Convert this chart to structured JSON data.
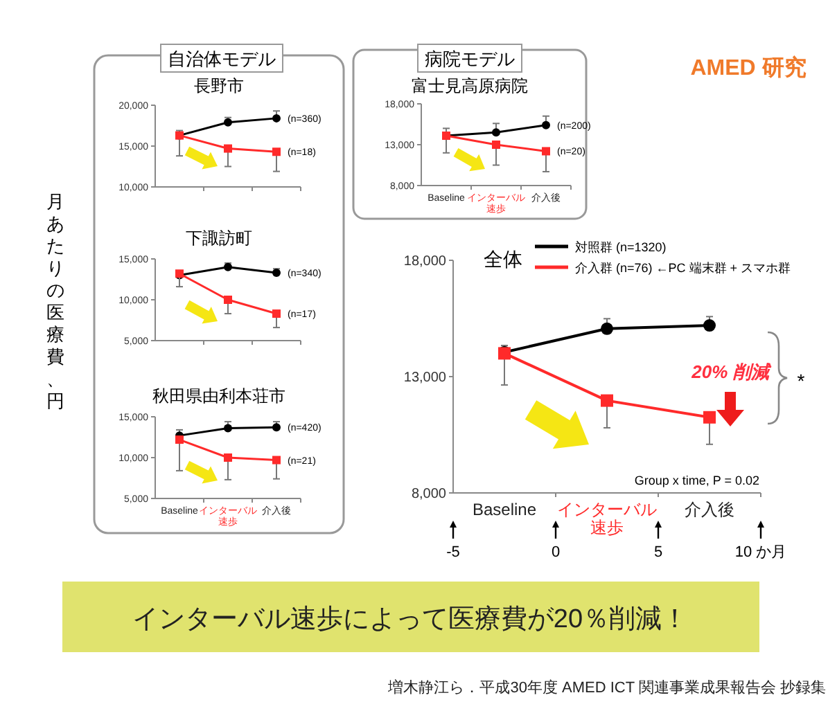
{
  "chart_data": [
    {
      "type": "line",
      "title": "長野市",
      "ylabel": "月あたりの医療費、円",
      "annotations": [
        "自治体モデル"
      ],
      "categories": [
        null,
        null,
        null
      ],
      "ylim": [
        10000,
        20000
      ],
      "yticks": [
        {
          "value": 10000,
          "label": "10,000"
        },
        {
          "value": 15000,
          "label": "15,000"
        },
        {
          "value": 20000,
          "label": "20,000"
        }
      ],
      "series": [
        {
          "name": "(n=360)",
          "color": "#000000",
          "marker": "circle",
          "values": [
            16300,
            17900,
            18400
          ],
          "errors": [
            [
              16300,
              16900
            ],
            [
              17900,
              18500
            ],
            [
              18400,
              19300
            ]
          ]
        },
        {
          "name": "(n=18)",
          "color": "#ff2a2a",
          "marker": "square",
          "values": [
            16300,
            14700,
            14300
          ],
          "errors": [
            [
              13800,
              16300
            ],
            [
              12500,
              14700
            ],
            [
              11900,
              14300
            ]
          ]
        }
      ]
    },
    {
      "type": "line",
      "title": "下諏訪町",
      "categories": [
        null,
        null,
        null
      ],
      "ylim": [
        5000,
        15000
      ],
      "yticks": [
        {
          "value": 5000,
          "label": "5,000"
        },
        {
          "value": 10000,
          "label": "10,000"
        },
        {
          "value": 15000,
          "label": "15,000"
        }
      ],
      "series": [
        {
          "name": "(n=340)",
          "color": "#000000",
          "marker": "circle",
          "values": [
            13000,
            14000,
            13300
          ],
          "errors": [
            null,
            [
              14000,
              14500
            ],
            [
              13300,
              13800
            ]
          ]
        },
        {
          "name": "(n=17)",
          "color": "#ff2a2a",
          "marker": "square",
          "values": [
            13200,
            10000,
            8300
          ],
          "errors": [
            [
              11600,
              13200
            ],
            [
              8300,
              10000
            ],
            [
              6600,
              8300
            ]
          ]
        }
      ]
    },
    {
      "type": "line",
      "title": "秋田県由利本荘市",
      "categories": [
        "Baseline",
        "インターバル速歩",
        "介入後"
      ],
      "ylim": [
        5000,
        15000
      ],
      "yticks": [
        {
          "value": 5000,
          "label": "5,000"
        },
        {
          "value": 10000,
          "label": "10,000"
        },
        {
          "value": 15000,
          "label": "15,000"
        }
      ],
      "series": [
        {
          "name": "(n=420)",
          "color": "#000000",
          "marker": "circle",
          "values": [
            12700,
            13600,
            13700
          ],
          "errors": [
            [
              12700,
              13400
            ],
            [
              13600,
              14400
            ],
            [
              13700,
              14400
            ]
          ]
        },
        {
          "name": "(n=21)",
          "color": "#ff2a2a",
          "marker": "square",
          "values": [
            12200,
            10000,
            9700
          ],
          "errors": [
            [
              8400,
              12200
            ],
            [
              7300,
              10000
            ],
            [
              7400,
              9700
            ]
          ]
        }
      ]
    },
    {
      "type": "line",
      "title": "富士見高原病院",
      "annotations": [
        "病院モデル"
      ],
      "categories": [
        "Baseline",
        "インターバル速歩",
        "介入後"
      ],
      "ylim": [
        8000,
        18000
      ],
      "yticks": [
        {
          "value": 8000,
          "label": "8,000"
        },
        {
          "value": 13000,
          "label": "13,000"
        },
        {
          "value": 18000,
          "label": "18,000"
        }
      ],
      "series": [
        {
          "name": "(n=200)",
          "color": "#000000",
          "marker": "circle",
          "values": [
            14100,
            14500,
            15400
          ],
          "errors": [
            [
              14100,
              15000
            ],
            [
              14500,
              15600
            ],
            [
              15400,
              16500
            ]
          ]
        },
        {
          "name": "(n=20)",
          "color": "#ff2a2a",
          "marker": "square",
          "values": [
            14100,
            13000,
            12200
          ],
          "errors": [
            [
              12000,
              14100
            ],
            [
              10500,
              13000
            ],
            [
              9700,
              12200
            ]
          ]
        }
      ]
    },
    {
      "type": "line",
      "title": "全体",
      "legend": "top",
      "annotations": [
        "AMED 研究",
        "20% 削減",
        "*",
        "Group x time, P = 0.02",
        "インターバル速歩によって医療費が20％削減！",
        "増木静江ら．平成30年度 AMED ICT 関連事業成果報告会 抄録集"
      ],
      "categories": [
        "Baseline",
        "インターバル速歩",
        "介入後"
      ],
      "ylim": [
        8000,
        18000
      ],
      "yticks": [
        {
          "value": 8000,
          "label": "8,000"
        },
        {
          "value": 13000,
          "label": "13,000"
        },
        {
          "value": 18000,
          "label": "18,000"
        }
      ],
      "x2lim": [
        -5,
        10
      ],
      "x2ticks": [
        -5,
        0,
        5,
        {
          "value": 10,
          "label": "10 か月"
        }
      ],
      "series": [
        {
          "name": "対照群 (n=1320)",
          "color": "#000000",
          "marker": "circle",
          "values": [
            14050,
            15060,
            15200
          ],
          "errors": [
            [
              14050,
              14340
            ],
            [
              15060,
              15490
            ],
            [
              15200,
              15580
            ]
          ]
        },
        {
          "name": "介入群 (n=76) ←PC 端末群 + スマホ群",
          "color": "#ff2a2a",
          "marker": "square",
          "values": [
            14000,
            11970,
            11250
          ],
          "errors": [
            [
              12640,
              14000
            ],
            [
              10800,
              11970
            ],
            [
              10090,
              11250
            ]
          ]
        }
      ]
    }
  ]
}
